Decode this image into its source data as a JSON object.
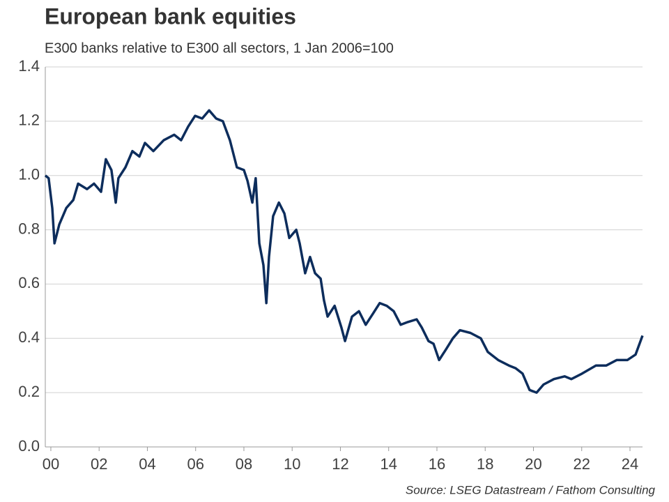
{
  "chart_data": {
    "type": "line",
    "title": "European bank equities",
    "subtitle": "E300 banks relative to E300 all sectors, 1 Jan 2006=100",
    "source": "Source: LSEG Datastream / Fathom Consulting",
    "grid": true,
    "xlim": [
      1999.77,
      2024.52
    ],
    "xticks": [
      {
        "value": 2000,
        "label": "00"
      },
      {
        "value": 2002,
        "label": "02"
      },
      {
        "value": 2004,
        "label": "04"
      },
      {
        "value": 2006,
        "label": "06"
      },
      {
        "value": 2008,
        "label": "08"
      },
      {
        "value": 2010,
        "label": "10"
      },
      {
        "value": 2012,
        "label": "12"
      },
      {
        "value": 2014,
        "label": "14"
      },
      {
        "value": 2016,
        "label": "16"
      },
      {
        "value": 2018,
        "label": "18"
      },
      {
        "value": 2020,
        "label": "20"
      },
      {
        "value": 2022,
        "label": "22"
      },
      {
        "value": 2024,
        "label": "24"
      }
    ],
    "ylim": [
      0,
      1.4
    ],
    "yticks": [
      {
        "value": 0,
        "label": "0.0"
      },
      0.2,
      0.4,
      0.6,
      0.8,
      {
        "value": 1,
        "label": "1.0"
      },
      1.2,
      1.4
    ],
    "x": [
      1999.77,
      1999.91,
      2000.06,
      2000.15,
      2000.35,
      2000.64,
      2000.93,
      2001.13,
      2001.5,
      2001.79,
      2002.08,
      2002.28,
      2002.51,
      2002.69,
      2002.8,
      2003.09,
      2003.38,
      2003.67,
      2003.9,
      2004.25,
      2004.68,
      2005.11,
      2005.4,
      2005.69,
      2005.98,
      2006.27,
      2006.56,
      2006.85,
      2007.13,
      2007.42,
      2007.71,
      2008.0,
      2008.15,
      2008.35,
      2008.49,
      2008.64,
      2008.81,
      2008.93,
      2009.04,
      2009.21,
      2009.45,
      2009.68,
      2009.88,
      2010.17,
      2010.31,
      2010.54,
      2010.74,
      2010.95,
      2011.18,
      2011.32,
      2011.47,
      2011.76,
      2012.04,
      2012.19,
      2012.48,
      2012.77,
      2013.05,
      2013.34,
      2013.63,
      2013.92,
      2014.21,
      2014.5,
      2014.79,
      2015.16,
      2015.37,
      2015.65,
      2015.86,
      2016.09,
      2016.38,
      2016.66,
      2016.95,
      2017.39,
      2017.82,
      2018.11,
      2018.54,
      2018.98,
      2019.26,
      2019.55,
      2019.84,
      2020.13,
      2020.42,
      2020.85,
      2021.29,
      2021.57,
      2022.01,
      2022.59,
      2023.02,
      2023.45,
      2023.89,
      2024.23,
      2024.52
    ],
    "series": [
      {
        "name": "E300 banks relative to E300 all sectors",
        "color": "#0d2d5c",
        "values": [
          1.0,
          0.99,
          0.88,
          0.75,
          0.82,
          0.88,
          0.91,
          0.97,
          0.95,
          0.97,
          0.94,
          1.06,
          1.02,
          0.9,
          0.99,
          1.03,
          1.09,
          1.07,
          1.12,
          1.09,
          1.13,
          1.15,
          1.13,
          1.18,
          1.22,
          1.21,
          1.24,
          1.21,
          1.2,
          1.13,
          1.03,
          1.02,
          0.98,
          0.9,
          0.99,
          0.75,
          0.67,
          0.53,
          0.7,
          0.85,
          0.9,
          0.86,
          0.77,
          0.8,
          0.75,
          0.64,
          0.7,
          0.64,
          0.62,
          0.54,
          0.48,
          0.52,
          0.44,
          0.39,
          0.48,
          0.5,
          0.45,
          0.49,
          0.53,
          0.52,
          0.5,
          0.45,
          0.46,
          0.47,
          0.44,
          0.39,
          0.38,
          0.32,
          0.36,
          0.4,
          0.43,
          0.42,
          0.4,
          0.35,
          0.32,
          0.3,
          0.29,
          0.27,
          0.21,
          0.2,
          0.23,
          0.25,
          0.26,
          0.25,
          0.27,
          0.3,
          0.3,
          0.32,
          0.32,
          0.34,
          0.41
        ]
      }
    ]
  }
}
